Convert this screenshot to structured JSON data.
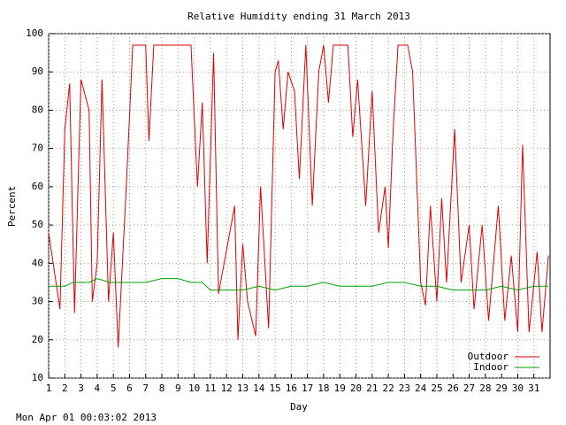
{
  "chart_data": {
    "type": "line",
    "title": "Relative Humidity ending 31 March 2013",
    "x_label": "Day",
    "y_label": "Percent",
    "footer": "Mon Apr 01 00:03:02 2013",
    "xlim": [
      1,
      32
    ],
    "ylim": [
      10,
      100
    ],
    "xticks": [
      1,
      2,
      3,
      4,
      5,
      6,
      7,
      8,
      9,
      10,
      11,
      12,
      13,
      14,
      15,
      16,
      17,
      18,
      19,
      20,
      21,
      22,
      23,
      24,
      25,
      26,
      27,
      28,
      29,
      30,
      31
    ],
    "yticks": [
      10,
      20,
      30,
      40,
      50,
      60,
      70,
      80,
      90,
      100
    ],
    "grid": true,
    "legend": "lower right",
    "series": [
      {
        "name": "Outdoor",
        "color": "#e00000",
        "x": [
          1,
          1.7,
          2,
          2.3,
          2.6,
          3,
          3.5,
          3.7,
          4,
          4.3,
          4.7,
          5,
          5.3,
          5.8,
          6.2,
          7,
          7.2,
          7.5,
          8,
          9,
          9.8,
          10.2,
          10.5,
          10.8,
          11.2,
          11.5,
          12.5,
          12.7,
          13,
          13.3,
          13.8,
          14.1,
          14.6,
          15,
          15.2,
          15.5,
          15.8,
          16.2,
          16.5,
          16.9,
          17.3,
          17.7,
          18,
          18.3,
          18.6,
          19.5,
          19.8,
          20.1,
          20.6,
          21,
          21.4,
          21.8,
          22,
          22.3,
          22.6,
          23.2,
          23.5,
          24,
          24.3,
          24.6,
          25,
          25.3,
          25.6,
          26.1,
          26.5,
          27,
          27.3,
          27.8,
          28.2,
          28.5,
          28.8,
          29.2,
          29.6,
          30,
          30.3,
          30.7,
          31.2,
          31.5,
          31.9
        ],
        "values": [
          48,
          28,
          75,
          87,
          27,
          88,
          80,
          30,
          40,
          88,
          30,
          48,
          18,
          60,
          97,
          97,
          72,
          97,
          97,
          97,
          97,
          60,
          82,
          40,
          95,
          32,
          55,
          20,
          45,
          30,
          21,
          60,
          23,
          90,
          93,
          75,
          90,
          85,
          62,
          97,
          55,
          90,
          97,
          82,
          97,
          97,
          73,
          88,
          55,
          85,
          48,
          60,
          44,
          75,
          97,
          97,
          90,
          35,
          29,
          55,
          30,
          57,
          35,
          75,
          35,
          50,
          28,
          50,
          25,
          40,
          55,
          25,
          42,
          22,
          71,
          22,
          43,
          22,
          42
        ]
      },
      {
        "name": "Indoor",
        "color": "#00a000",
        "x": [
          1,
          2,
          2.5,
          3.5,
          4,
          4.8,
          6,
          7,
          8,
          9,
          9.8,
          10.5,
          11,
          13,
          14,
          15,
          16,
          17,
          18,
          19,
          20,
          21,
          22,
          23,
          24,
          25,
          26,
          28,
          29,
          30,
          31,
          31.9
        ],
        "values": [
          34,
          34,
          35,
          35,
          36,
          35,
          35,
          35,
          36,
          36,
          35,
          35,
          33,
          33,
          34,
          33,
          34,
          34,
          35,
          34,
          34,
          34,
          35,
          35,
          34,
          34,
          33,
          33,
          34,
          33,
          34,
          34
        ]
      }
    ]
  }
}
